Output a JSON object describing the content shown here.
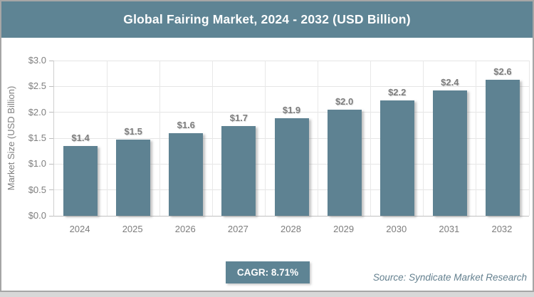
{
  "page": {
    "background_color": "#d8d8d8",
    "frame_border_color": "#a6a6a6",
    "frame_background": "#ffffff"
  },
  "header": {
    "title": "Global Fairing Market, 2024 - 2032 (USD Billion)",
    "background_color": "#5e8494",
    "text_color": "#ffffff"
  },
  "chart_data": {
    "type": "bar",
    "title": "Global Fairing Market, 2024 - 2032 (USD Billion)",
    "xlabel": "",
    "ylabel": "Market Size (USD Billion)",
    "categories": [
      "2024",
      "2025",
      "2026",
      "2027",
      "2028",
      "2029",
      "2030",
      "2031",
      "2032"
    ],
    "values": [
      1.4,
      1.5,
      1.6,
      1.7,
      1.9,
      2.0,
      2.2,
      2.4,
      2.6
    ],
    "values_precise": [
      1.35,
      1.47,
      1.6,
      1.73,
      1.89,
      2.05,
      2.23,
      2.42,
      2.63
    ],
    "data_labels": [
      "$1.4",
      "$1.5",
      "$1.6",
      "$1.7",
      "$1.9",
      "$2.0",
      "$2.2",
      "$2.4",
      "$2.6"
    ],
    "ylim": [
      0,
      3.0
    ],
    "ytick_step": 0.5,
    "yticks": [
      0,
      0.5,
      1.0,
      1.5,
      2.0,
      2.5,
      3.0
    ],
    "ytick_labels": [
      "$0.0",
      "$0.5",
      "$1.0",
      "$1.5",
      "$2.0",
      "$2.5",
      "$3.0"
    ],
    "grid": true,
    "legend": false,
    "bar_color": "#5e8292",
    "label_color": "#7d7d7d"
  },
  "footer": {
    "cagr_badge": "CAGR: 8.71%",
    "badge_background": "#5e8494",
    "badge_text_color": "#ffffff",
    "source": "Source: Syndicate Market Research",
    "source_color": "#64808f"
  }
}
